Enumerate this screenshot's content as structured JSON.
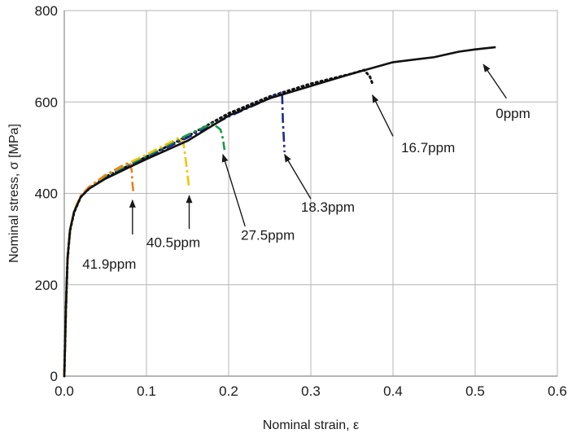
{
  "chart_data": {
    "type": "line",
    "title": "",
    "xlabel": "Nominal strain, ε",
    "ylabel": "Nominal stress, σ [MPa]",
    "xlim": [
      0,
      0.6
    ],
    "ylim": [
      0,
      800
    ],
    "xticks": [
      0.0,
      0.1,
      0.2,
      0.3,
      0.4,
      0.5,
      0.6
    ],
    "xtick_labels": [
      "0.0",
      "0.1",
      "0.2",
      "0.3",
      "0.4",
      "0.5",
      "0.6"
    ],
    "yticks": [
      0,
      200,
      400,
      600,
      800
    ],
    "ytick_labels": [
      "0",
      "200",
      "400",
      "600",
      "800"
    ],
    "grid": true,
    "legend": "none",
    "series": [
      {
        "name": "0ppm",
        "color": "#111111",
        "style": "solid",
        "points": [
          [
            0,
            0
          ],
          [
            0.002,
            150
          ],
          [
            0.004,
            260
          ],
          [
            0.007,
            320
          ],
          [
            0.012,
            360
          ],
          [
            0.02,
            392
          ],
          [
            0.03,
            410
          ],
          [
            0.05,
            432
          ],
          [
            0.08,
            458
          ],
          [
            0.1,
            475
          ],
          [
            0.15,
            515
          ],
          [
            0.2,
            570
          ],
          [
            0.25,
            608
          ],
          [
            0.3,
            635
          ],
          [
            0.35,
            662
          ],
          [
            0.37,
            672
          ],
          [
            0.4,
            687
          ],
          [
            0.45,
            698
          ],
          [
            0.48,
            710
          ],
          [
            0.5,
            715
          ],
          [
            0.525,
            720
          ]
        ]
      },
      {
        "name": "16.7ppm",
        "color": "#111111",
        "style": "dotted",
        "points": [
          [
            0,
            0
          ],
          [
            0.002,
            145
          ],
          [
            0.004,
            255
          ],
          [
            0.007,
            318
          ],
          [
            0.012,
            358
          ],
          [
            0.02,
            392
          ],
          [
            0.03,
            410
          ],
          [
            0.05,
            436
          ],
          [
            0.08,
            462
          ],
          [
            0.1,
            480
          ],
          [
            0.15,
            525
          ],
          [
            0.2,
            575
          ],
          [
            0.25,
            612
          ],
          [
            0.3,
            640
          ],
          [
            0.35,
            662
          ],
          [
            0.365,
            670
          ],
          [
            0.372,
            655
          ],
          [
            0.375,
            640
          ]
        ]
      },
      {
        "name": "18.3ppm",
        "color": "#1f2a8a",
        "style": "dash-dot",
        "points": [
          [
            0,
            0
          ],
          [
            0.002,
            145
          ],
          [
            0.004,
            255
          ],
          [
            0.007,
            320
          ],
          [
            0.012,
            360
          ],
          [
            0.02,
            393
          ],
          [
            0.03,
            412
          ],
          [
            0.05,
            436
          ],
          [
            0.08,
            462
          ],
          [
            0.1,
            478
          ],
          [
            0.15,
            522
          ],
          [
            0.2,
            568
          ],
          [
            0.25,
            608
          ],
          [
            0.265,
            622
          ],
          [
            0.266,
            560
          ],
          [
            0.268,
            490
          ]
        ]
      },
      {
        "name": "27.5ppm",
        "color": "#1a9a4a",
        "style": "dash-dot",
        "points": [
          [
            0,
            0
          ],
          [
            0.002,
            145
          ],
          [
            0.004,
            255
          ],
          [
            0.007,
            320
          ],
          [
            0.012,
            360
          ],
          [
            0.02,
            393
          ],
          [
            0.03,
            412
          ],
          [
            0.05,
            438
          ],
          [
            0.08,
            465
          ],
          [
            0.1,
            482
          ],
          [
            0.15,
            528
          ],
          [
            0.18,
            553
          ],
          [
            0.19,
            540
          ],
          [
            0.193,
            520
          ],
          [
            0.195,
            495
          ]
        ]
      },
      {
        "name": "40.5ppm",
        "color": "#f3c400",
        "style": "dash-dot",
        "points": [
          [
            0,
            0
          ],
          [
            0.002,
            145
          ],
          [
            0.004,
            255
          ],
          [
            0.007,
            320
          ],
          [
            0.012,
            360
          ],
          [
            0.02,
            393
          ],
          [
            0.03,
            412
          ],
          [
            0.05,
            440
          ],
          [
            0.08,
            468
          ],
          [
            0.1,
            485
          ],
          [
            0.14,
            522
          ],
          [
            0.145,
            510
          ],
          [
            0.148,
            470
          ],
          [
            0.152,
            410
          ]
        ]
      },
      {
        "name": "41.9ppm",
        "color": "#ef7f1a",
        "style": "dash-dot",
        "points": [
          [
            0,
            0
          ],
          [
            0.002,
            145
          ],
          [
            0.004,
            255
          ],
          [
            0.007,
            320
          ],
          [
            0.012,
            362
          ],
          [
            0.02,
            395
          ],
          [
            0.03,
            414
          ],
          [
            0.05,
            440
          ],
          [
            0.07,
            460
          ],
          [
            0.08,
            468
          ],
          [
            0.082,
            450
          ],
          [
            0.083,
            420
          ],
          [
            0.084,
            405
          ]
        ]
      }
    ],
    "annotations": [
      {
        "text": "0ppm",
        "text_at": [
          0.525,
          565
        ],
        "arrow_from": [
          0.538,
          608
        ],
        "arrow_to": [
          0.51,
          682
        ]
      },
      {
        "text": "16.7ppm",
        "text_at": [
          0.41,
          490
        ],
        "arrow_from": [
          0.4,
          525
        ],
        "arrow_to": [
          0.375,
          615
        ]
      },
      {
        "text": "18.3ppm",
        "text_at": [
          0.288,
          360
        ],
        "arrow_from": [
          0.3,
          388
        ],
        "arrow_to": [
          0.268,
          485
        ]
      },
      {
        "text": "27.5ppm",
        "text_at": [
          0.215,
          298
        ],
        "arrow_from": [
          0.22,
          328
        ],
        "arrow_to": [
          0.193,
          485
        ]
      },
      {
        "text": "40.5ppm",
        "text_at": [
          0.1,
          282
        ],
        "arrow_from": [
          0.152,
          322
        ],
        "arrow_to": [
          0.152,
          395
        ]
      },
      {
        "text": "41.9ppm",
        "text_at": [
          0.022,
          235
        ],
        "arrow_from": [
          0.083,
          310
        ],
        "arrow_to": [
          0.083,
          385
        ]
      }
    ]
  }
}
